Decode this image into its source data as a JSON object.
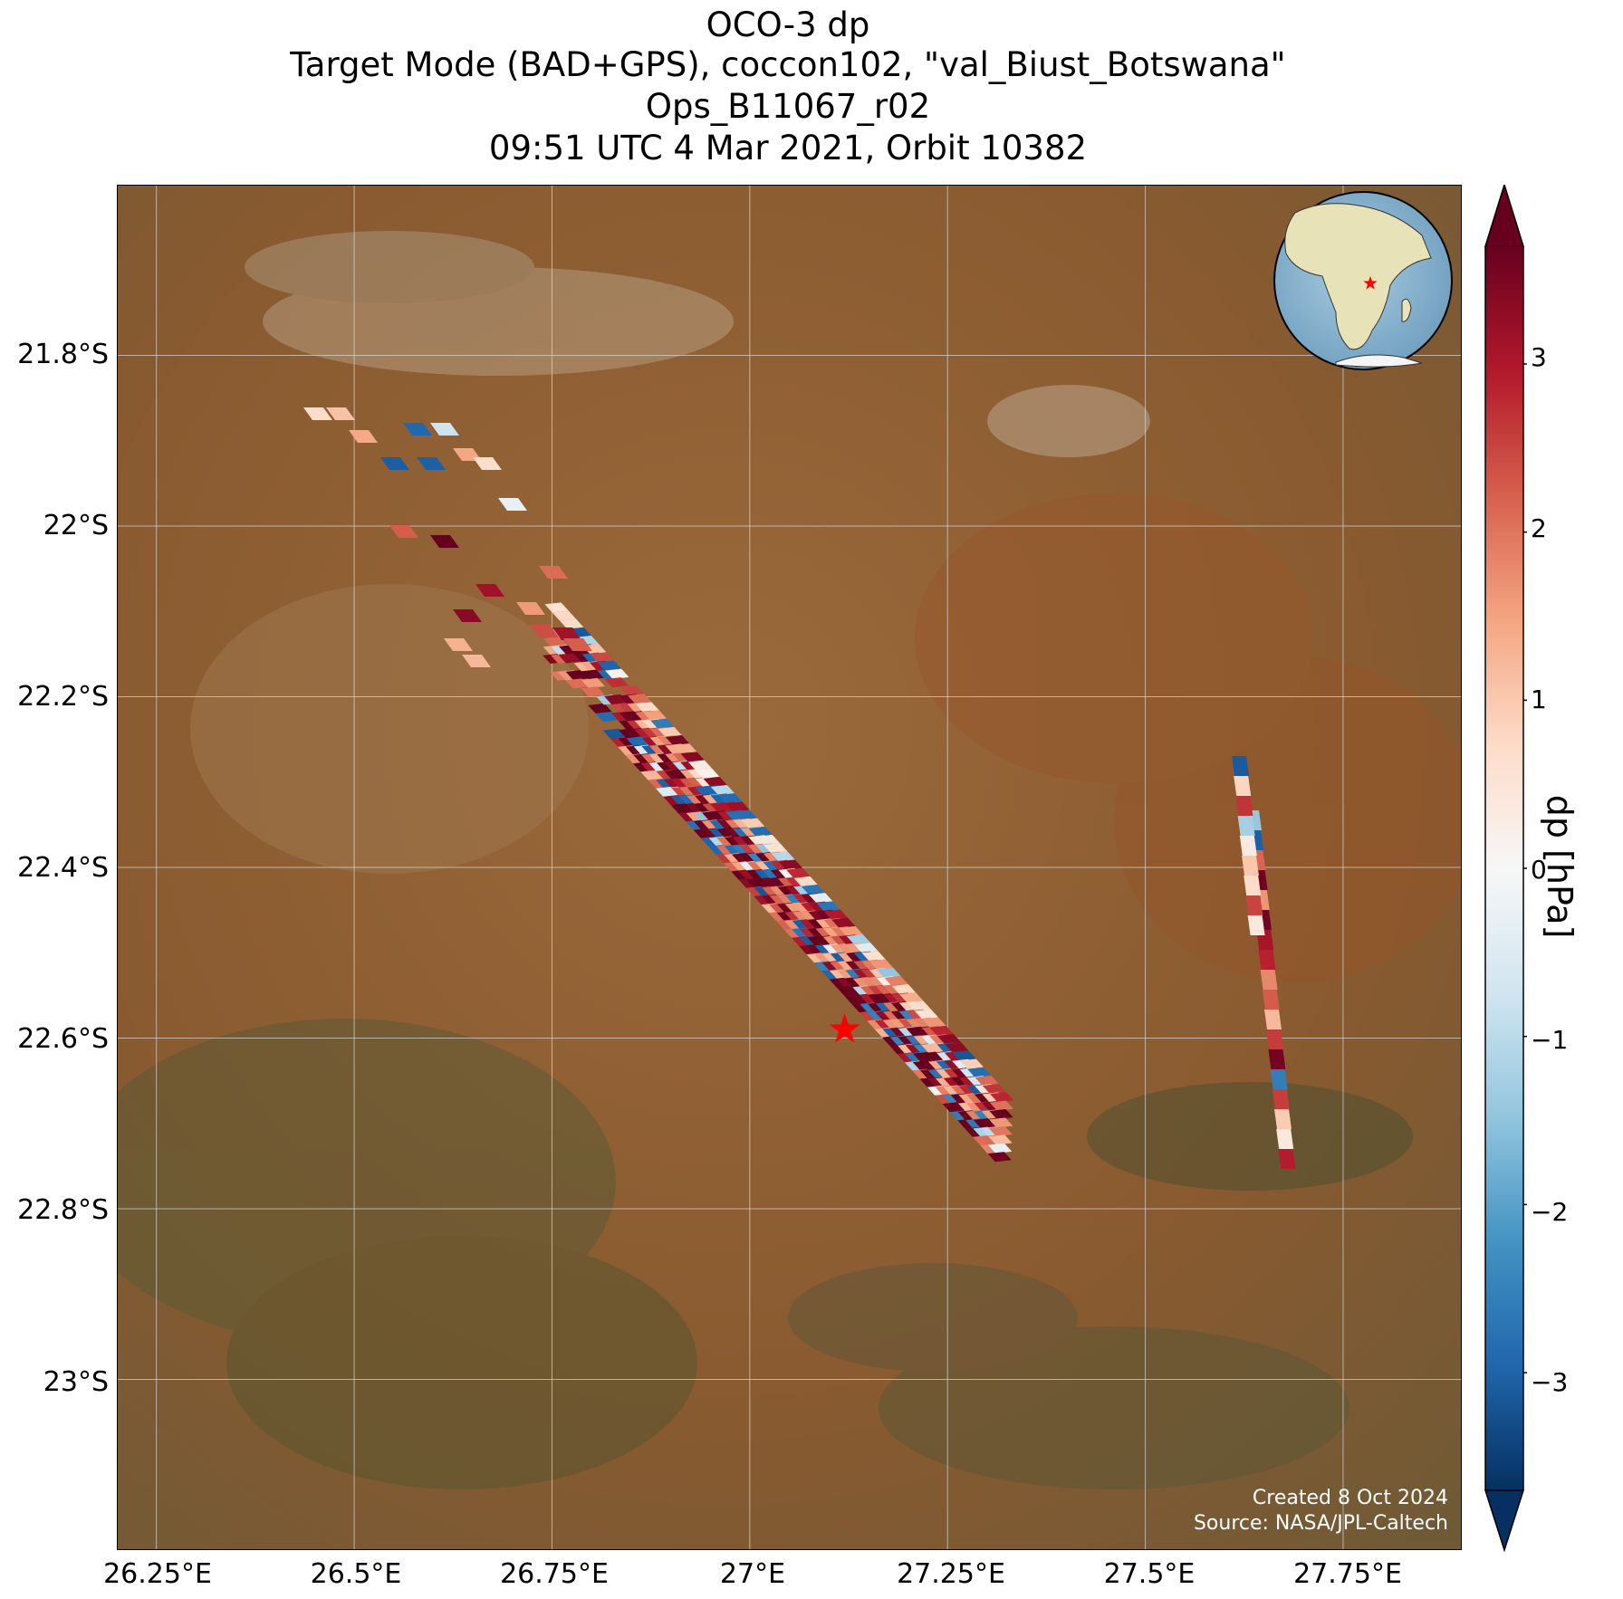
{
  "title": {
    "line1": "OCO-3 dp",
    "line2": "Target Mode (BAD+GPS), coccon102, \"val_Biust_Botswana\"",
    "line3": "Ops_B11067_r02",
    "line4": "09:51 UTC 4 Mar 2021, Orbit 10382"
  },
  "map": {
    "lon_ticks": [
      "26.25°E",
      "26.5°E",
      "26.75°E",
      "27°E",
      "27.25°E",
      "27.5°E",
      "27.75°E"
    ],
    "lat_ticks": [
      "21.8°S",
      "22°S",
      "22.2°S",
      "22.4°S",
      "22.6°S",
      "22.8°S",
      "23°S"
    ],
    "lon_tick_values": [
      26.25,
      26.5,
      26.75,
      27.0,
      27.25,
      27.5,
      27.75
    ],
    "lat_tick_values": [
      -21.8,
      -22.0,
      -22.2,
      -22.4,
      -22.6,
      -22.8,
      -23.0
    ],
    "lon_range": [
      26.2,
      27.9
    ],
    "lat_range": [
      -21.6,
      -23.2
    ],
    "target_marker": {
      "lon": 27.12,
      "lat": -22.59,
      "color": "#ff0000",
      "symbol": "star"
    },
    "gridlines": true,
    "background": "satellite imagery (semi-arid savanna, brown/ochre with green hills)",
    "inset_globe": {
      "position": "top-right",
      "marker": "star",
      "region": "Africa"
    }
  },
  "credits": {
    "created": "Created 8 Oct 2024",
    "source": "Source: NASA/JPL-Caltech"
  },
  "colorbar": {
    "label": "dp [hPa]",
    "ticks": [
      "3",
      "2",
      "1",
      "0",
      "−1",
      "−2",
      "−3"
    ],
    "tick_values": [
      3,
      2,
      1,
      0,
      -1,
      -2,
      -3
    ],
    "range": [
      -3.7,
      3.7
    ],
    "cmap": "RdBu_r",
    "extend": "both",
    "colors": [
      "#053061",
      "#2166ac",
      "#4393c3",
      "#92c5de",
      "#d1e5f0",
      "#f7f7f7",
      "#fddbc7",
      "#f4a582",
      "#d6604d",
      "#b2182b",
      "#67001f"
    ]
  }
}
